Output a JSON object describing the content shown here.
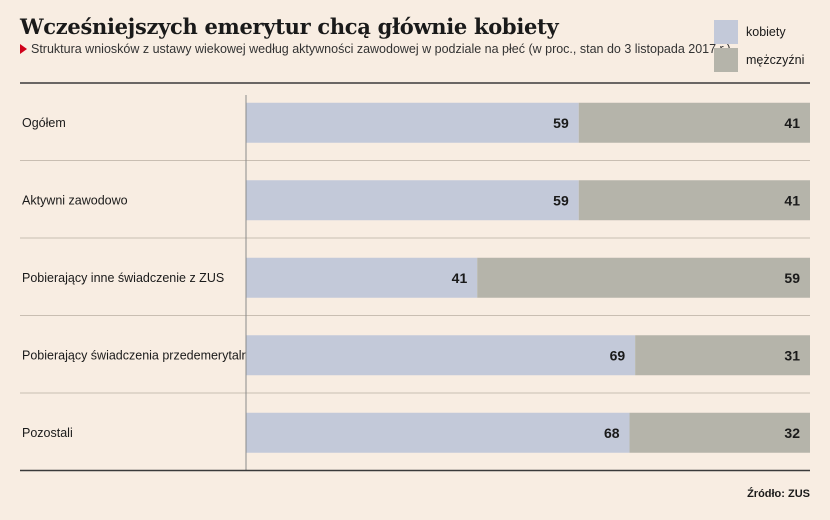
{
  "header": {
    "title": "Wcześniejszych emerytur chcą głównie kobiety",
    "subtitle": "Struktura wniosków z ustawy wiekowej według aktywności zawodowej w podziale na płeć (w proc., stan do 3 listopada 2017 r.)"
  },
  "legend": [
    {
      "label": "kobiety",
      "color": "#c3c9d9"
    },
    {
      "label": "mężczyźni",
      "color": "#b5b4aa"
    }
  ],
  "source": "Źródło: ZUS",
  "chart_data": {
    "type": "bar",
    "orientation": "horizontal",
    "stacked": true,
    "categories": [
      "Ogółem",
      "Aktywni zawodowo",
      "Pobierający inne świadczenie z ZUS",
      "Pobierający świadczenia przedemerytalne",
      "Pozostali"
    ],
    "series": [
      {
        "name": "kobiety",
        "color": "#c3c9d9",
        "values": [
          59,
          59,
          41,
          69,
          68
        ]
      },
      {
        "name": "mężczyźni",
        "color": "#b5b4aa",
        "values": [
          41,
          41,
          59,
          31,
          32
        ]
      }
    ],
    "xlim": [
      0,
      100
    ],
    "grid": false,
    "legend_position": "top-right"
  }
}
